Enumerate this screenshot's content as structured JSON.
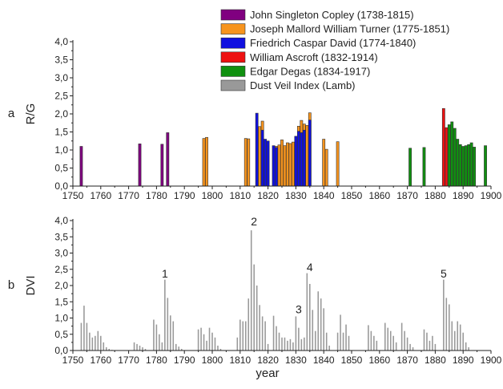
{
  "chart_data": [
    {
      "type": "bar",
      "panel_label": "a",
      "xlabel": "year",
      "ylabel": "R/G",
      "xlim": [
        1750,
        1900
      ],
      "ylim": [
        0.0,
        4.0
      ],
      "x_ticks": [
        "1750",
        "1760",
        "1770",
        "1780",
        "1790",
        "1800",
        "1810",
        "1820",
        "1830",
        "1840",
        "1850",
        "1860",
        "1870",
        "1880",
        "1890",
        "1900"
      ],
      "y_ticks": [
        "0,0",
        "0,5",
        "1,0",
        "1,5",
        "2,0",
        "2,5",
        "3,0",
        "3,5",
        "4,0"
      ],
      "legend_position": "top-right",
      "legend": [
        {
          "label": "John Singleton Copley (1738-1815)",
          "color": "#800080"
        },
        {
          "label": "Joseph Mallord William Turner (1775-1851)",
          "color": "#F7941D"
        },
        {
          "label": "Friedrich Caspar David (1774-1840)",
          "color": "#1010E0"
        },
        {
          "label": "William Ascroft (1832-1914)",
          "color": "#EE1111"
        },
        {
          "label": "Edgar Degas (1834-1917)",
          "color": "#109010"
        },
        {
          "label": "Dust Veil Index (Lamb)",
          "color": "#999999"
        }
      ],
      "series": [
        {
          "name": "John Singleton Copley (1738-1815)",
          "color": "#800080",
          "x": [
            1753,
            1774,
            1782,
            1784
          ],
          "values": [
            1.1,
            1.17,
            1.16,
            1.48
          ]
        },
        {
          "name": "Joseph Mallord William Turner (1775-1851)",
          "color": "#F7941D",
          "x": [
            1797,
            1798,
            1812,
            1813,
            1817,
            1818,
            1819,
            1823,
            1824,
            1825,
            1826,
            1827,
            1828,
            1829,
            1830,
            1831,
            1832,
            1833,
            1834,
            1835,
            1840,
            1841,
            1845
          ],
          "values": [
            1.32,
            1.35,
            1.32,
            1.31,
            1.65,
            1.8,
            1.28,
            1.1,
            1.14,
            1.28,
            1.12,
            1.2,
            1.18,
            1.22,
            1.0,
            1.66,
            1.82,
            1.72,
            1.68,
            2.03,
            1.3,
            1.02,
            1.23
          ]
        },
        {
          "name": "Friedrich Caspar David (1774-1840)",
          "color": "#1010E0",
          "x": [
            1816,
            1818,
            1819,
            1820,
            1822,
            1823,
            1830,
            1831,
            1832,
            1833,
            1835
          ],
          "values": [
            2.02,
            1.55,
            1.3,
            1.25,
            1.12,
            1.07,
            1.38,
            1.52,
            1.48,
            1.55,
            1.83
          ]
        },
        {
          "name": "William Ascroft (1832-1914)",
          "color": "#EE1111",
          "x": [
            1883,
            1884
          ],
          "values": [
            2.15,
            1.62
          ]
        },
        {
          "name": "Edgar Degas (1834-1917)",
          "color": "#109010",
          "x": [
            1871,
            1876,
            1885,
            1886,
            1887,
            1888,
            1889,
            1890,
            1891,
            1892,
            1893,
            1894,
            1898
          ],
          "values": [
            1.05,
            1.07,
            1.7,
            1.78,
            1.6,
            1.3,
            1.15,
            1.1,
            1.12,
            1.15,
            1.2,
            1.08,
            1.12
          ]
        }
      ]
    },
    {
      "type": "bar",
      "panel_label": "b",
      "xlabel": "year",
      "ylabel": "DVI",
      "xlim": [
        1750,
        1900
      ],
      "ylim": [
        0.0,
        4.0
      ],
      "x_ticks": [
        "1750",
        "1760",
        "1770",
        "1780",
        "1790",
        "1800",
        "1810",
        "1820",
        "1830",
        "1840",
        "1850",
        "1860",
        "1870",
        "1880",
        "1890",
        "1900"
      ],
      "y_ticks": [
        "0,0",
        "0,5",
        "1,0",
        "1,5",
        "2,0",
        "2,5",
        "3,0",
        "3,5",
        "4,0"
      ],
      "annotations": [
        {
          "text": "1",
          "x": 1783,
          "y": 2.25
        },
        {
          "text": "2",
          "x": 1815,
          "y": 3.85
        },
        {
          "text": "3",
          "x": 1831,
          "y": 1.15
        },
        {
          "text": "4",
          "x": 1835,
          "y": 2.45
        },
        {
          "text": "5",
          "x": 1883,
          "y": 2.25
        }
      ],
      "series": [
        {
          "name": "Dust Veil Index (Lamb)",
          "color": "#999999",
          "x": [
            1753,
            1754,
            1755,
            1756,
            1757,
            1758,
            1759,
            1760,
            1761,
            1762,
            1763,
            1764,
            1772,
            1773,
            1774,
            1775,
            1776,
            1779,
            1780,
            1781,
            1782,
            1783,
            1784,
            1785,
            1786,
            1787,
            1788,
            1789,
            1795,
            1796,
            1797,
            1798,
            1799,
            1800,
            1801,
            1802,
            1803,
            1809,
            1810,
            1811,
            1812,
            1813,
            1814,
            1815,
            1816,
            1817,
            1818,
            1819,
            1820,
            1822,
            1823,
            1824,
            1825,
            1826,
            1827,
            1828,
            1829,
            1830,
            1831,
            1832,
            1833,
            1834,
            1835,
            1836,
            1837,
            1838,
            1839,
            1840,
            1841,
            1842,
            1845,
            1846,
            1847,
            1848,
            1849,
            1856,
            1857,
            1858,
            1859,
            1862,
            1863,
            1864,
            1865,
            1866,
            1868,
            1869,
            1870,
            1871,
            1872,
            1876,
            1877,
            1878,
            1879,
            1880,
            1883,
            1884,
            1885,
            1886,
            1887,
            1888,
            1889,
            1890,
            1891,
            1892
          ],
          "values": [
            0.85,
            1.38,
            0.85,
            0.55,
            0.4,
            0.45,
            0.6,
            0.45,
            0.25,
            0.1,
            0.05,
            0.02,
            0.25,
            0.2,
            0.15,
            0.1,
            0.05,
            0.95,
            0.8,
            0.5,
            0.25,
            2.18,
            1.62,
            1.08,
            0.9,
            0.2,
            0.12,
            0.05,
            0.65,
            0.7,
            0.5,
            0.3,
            0.7,
            0.55,
            0.4,
            0.15,
            0.05,
            0.4,
            0.95,
            0.9,
            0.9,
            1.6,
            3.7,
            2.65,
            2.0,
            1.4,
            1.05,
            0.9,
            0.2,
            1.07,
            0.75,
            0.55,
            0.4,
            0.4,
            0.3,
            0.35,
            0.25,
            1.05,
            0.7,
            0.35,
            0.4,
            2.38,
            2.05,
            1.25,
            0.6,
            1.82,
            1.6,
            1.3,
            0.55,
            0.15,
            0.55,
            1.1,
            0.55,
            0.8,
            0.45,
            0.78,
            0.6,
            0.45,
            0.3,
            0.85,
            0.7,
            0.6,
            0.45,
            0.25,
            0.85,
            0.6,
            0.4,
            0.2,
            0.1,
            0.65,
            0.55,
            0.3,
            0.45,
            0.2,
            2.18,
            1.62,
            1.42,
            0.9,
            0.6,
            0.9,
            0.8,
            0.55,
            0.25,
            0.1
          ]
        }
      ]
    }
  ]
}
